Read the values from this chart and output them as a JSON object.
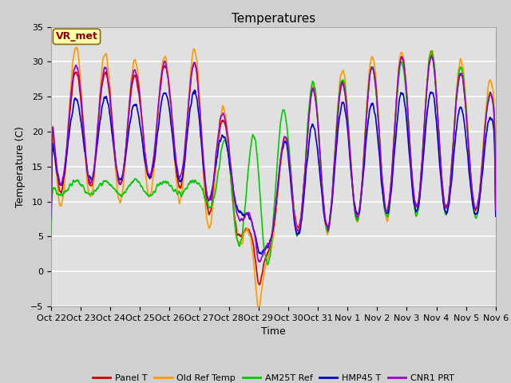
{
  "title": "Temperatures",
  "xlabel": "Time",
  "ylabel": "Temperature (C)",
  "ylim": [
    -5,
    35
  ],
  "yticks": [
    -5,
    0,
    5,
    10,
    15,
    20,
    25,
    30,
    35
  ],
  "x_tick_labels": [
    "Oct 22",
    "Oct 23",
    "Oct 24",
    "Oct 25",
    "Oct 26",
    "Oct 27",
    "Oct 28",
    "Oct 29",
    "Oct 30",
    "Oct 31",
    "Nov 1",
    "Nov 2",
    "Nov 3",
    "Nov 4",
    "Nov 5",
    "Nov 6"
  ],
  "annotation_text": "VR_met",
  "fig_facecolor": "#d0d0d0",
  "ax_facecolor": "#e0e0e0",
  "series": [
    {
      "name": "Panel T",
      "color": "#cc0000",
      "lw": 1.2
    },
    {
      "name": "Old Ref Temp",
      "color": "#ff9900",
      "lw": 1.2
    },
    {
      "name": "AM25T Ref",
      "color": "#00cc00",
      "lw": 1.2
    },
    {
      "name": "HMP45 T",
      "color": "#0000cc",
      "lw": 1.2
    },
    {
      "name": "CNR1 PRT",
      "color": "#9900cc",
      "lw": 1.2
    }
  ],
  "title_fontsize": 11,
  "label_fontsize": 9,
  "tick_fontsize": 8
}
